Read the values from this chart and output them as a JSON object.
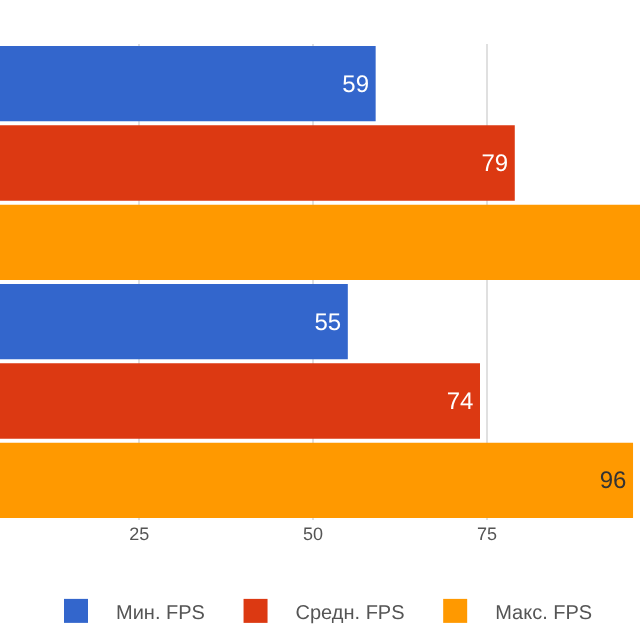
{
  "chart_data": {
    "type": "bar",
    "orientation": "horizontal",
    "categories": [
      null,
      null
    ],
    "series": [
      {
        "name": "Мин. FPS",
        "color": "#3366cc",
        "values": [
          59,
          55
        ],
        "value_labels": [
          "59",
          "55"
        ]
      },
      {
        "name": "Средн. FPS",
        "color": "#dc3912",
        "values": [
          79,
          74
        ],
        "value_labels": [
          "79",
          "74"
        ]
      },
      {
        "name": "Макс. FPS",
        "color": "#ff9900",
        "values": [
          97,
          96
        ],
        "value_labels": [
          null,
          "96"
        ]
      }
    ],
    "xlim": [
      5,
      97
    ],
    "xticks": [
      25,
      50,
      75
    ],
    "grid": "x",
    "legend": "bottom",
    "tick_labels": "x"
  }
}
